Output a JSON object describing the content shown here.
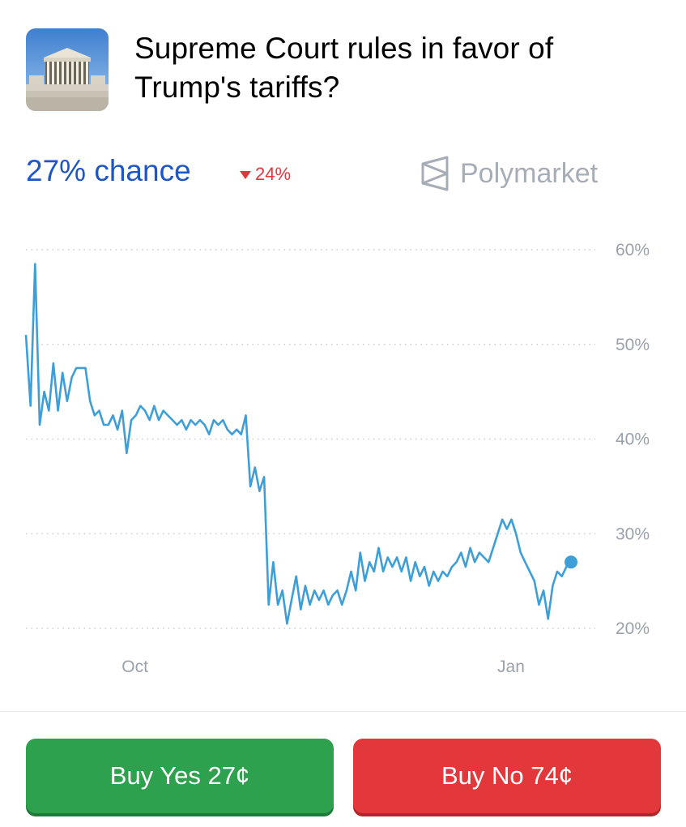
{
  "header": {
    "title_line1": "Supreme Court rules in favor of",
    "title_line2": "Trump's tariffs?",
    "thumbnail_icon": "supreme-court-building-image"
  },
  "stats": {
    "chance": "27% chance",
    "change": "24%",
    "change_direction": "down",
    "brand": "Polymarket",
    "brand_icon": "polymarket-logo-icon"
  },
  "colors": {
    "accent_blue": "#1e56c6",
    "line": "#3e9fd8",
    "yes_green": "#2ea14f",
    "no_red": "#e2383c",
    "down_red": "#e0373f"
  },
  "chart_data": {
    "type": "line",
    "y_ticks": [
      "60%",
      "50%",
      "40%",
      "30%",
      "20%"
    ],
    "ylim": [
      20,
      60
    ],
    "x_ticks": [
      {
        "label": "Oct",
        "t": 0.2
      },
      {
        "label": "Jan",
        "t": 0.89
      }
    ],
    "grid": "horizontal-dotted",
    "series": [
      {
        "values": [
          51,
          43.5,
          58.5,
          41.5,
          45,
          43,
          48,
          43,
          47,
          44,
          46.5,
          47.5,
          47.5,
          47.5,
          44,
          42.5,
          43,
          41.5,
          41.5,
          42.5,
          41,
          43,
          38.5,
          42,
          42.5,
          43.5,
          43,
          42,
          43.5,
          42,
          43,
          42.5,
          42,
          41.5,
          42,
          41,
          42,
          41.5,
          42,
          41.5,
          40.5,
          42,
          41.5,
          42,
          41,
          40.5,
          41,
          40.5,
          42.5,
          35,
          37,
          34.5,
          36,
          22.5,
          27,
          22.5,
          24,
          20.5,
          23,
          25.5,
          22,
          24.5,
          22.5,
          24,
          23,
          24,
          22.5,
          23.5,
          24,
          22.5,
          24,
          26,
          24,
          28,
          25,
          27,
          26,
          28.5,
          26,
          27.5,
          26.5,
          27.5,
          26,
          27.5,
          25,
          27,
          25.5,
          26.5,
          24.5,
          26,
          25,
          26,
          25.5,
          26.5,
          27,
          28,
          26.5,
          28.5,
          27,
          28,
          27.5,
          27,
          28.5,
          30,
          31.5,
          30.5,
          31.5,
          30,
          28,
          27,
          26,
          25,
          22.5,
          24,
          21,
          24.5,
          26,
          25.5,
          26.5,
          27
        ]
      }
    ],
    "current_value": 27
  },
  "actions": {
    "buy_yes": "Buy Yes 27¢",
    "buy_no": "Buy No 74¢"
  }
}
